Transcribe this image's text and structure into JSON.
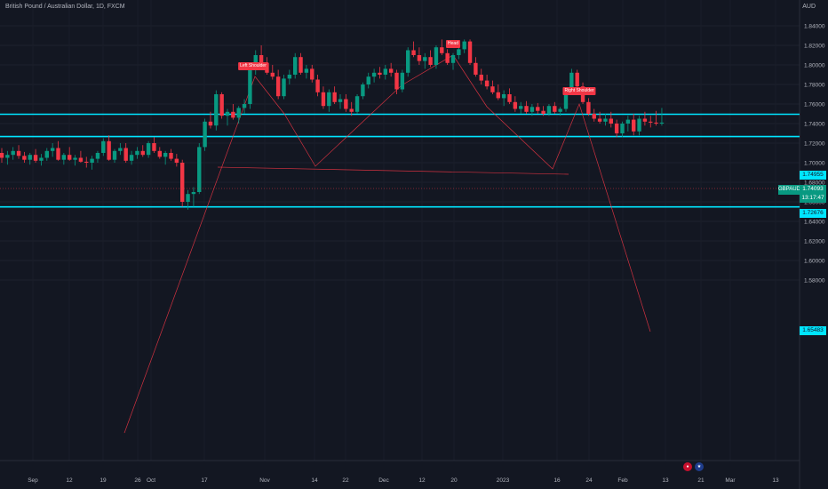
{
  "header": {
    "title": "British Pound / Australian Dollar, 1D, FXCM",
    "currency": "AUD"
  },
  "price_axis": {
    "labels": [
      "1.84000",
      "1.82000",
      "1.80000",
      "1.78000",
      "1.76000",
      "1.74000",
      "1.72000",
      "1.70000",
      "1.68000",
      "1.66000",
      "1.64000",
      "1.62000",
      "1.60000",
      "1.58000"
    ]
  },
  "time_axis": {
    "labels": [
      "Sep",
      "12",
      "19",
      "26",
      "Oct",
      "17",
      "Nov",
      "14",
      "22",
      "Dec",
      "12",
      "20",
      "2023",
      "16",
      "24",
      "Feb",
      "13",
      "21",
      "Mar",
      "13"
    ]
  },
  "levels": [
    {
      "price": 1.74955,
      "label": "1.74955"
    },
    {
      "price": 1.72676,
      "label": "1.72676"
    },
    {
      "price": 1.65483,
      "label": "1.65483"
    }
  ],
  "current": {
    "symbol": "GBPAUD",
    "price": "1.74093",
    "countdown": "13:17:47"
  },
  "pattern_labels": {
    "left_shoulder": "Left Shoulder",
    "head": "Head",
    "right_shoulder": "Right Shoulder"
  },
  "colors": {
    "background": "#131722",
    "up": "#089981",
    "down": "#f23645",
    "level": "#00e5ff",
    "pattern_line": "#f23645"
  },
  "event_icons": [
    "uk-flag-icon",
    "au-flag-icon"
  ],
  "chart_data": {
    "type": "candlestick",
    "symbol": "GBPAUD",
    "timeframe": "1D",
    "ylim": [
      1.575,
      1.845
    ],
    "candles_ohlc": [
      [
        1.71,
        1.715,
        1.7,
        1.705
      ],
      [
        1.705,
        1.712,
        1.698,
        1.708
      ],
      [
        1.708,
        1.716,
        1.703,
        1.712
      ],
      [
        1.712,
        1.718,
        1.704,
        1.707
      ],
      [
        1.707,
        1.711,
        1.7,
        1.703
      ],
      [
        1.703,
        1.71,
        1.698,
        1.708
      ],
      [
        1.708,
        1.714,
        1.7,
        1.702
      ],
      [
        1.702,
        1.709,
        1.697,
        1.705
      ],
      [
        1.705,
        1.715,
        1.702,
        1.712
      ],
      [
        1.712,
        1.72,
        1.706,
        1.715
      ],
      [
        1.715,
        1.722,
        1.702,
        1.703
      ],
      [
        1.703,
        1.71,
        1.698,
        1.708
      ],
      [
        1.708,
        1.716,
        1.702,
        1.703
      ],
      [
        1.703,
        1.708,
        1.697,
        1.705
      ],
      [
        1.705,
        1.712,
        1.7,
        1.701
      ],
      [
        1.701,
        1.706,
        1.695,
        1.7
      ],
      [
        1.7,
        1.707,
        1.693,
        1.704
      ],
      [
        1.704,
        1.712,
        1.7,
        1.71
      ],
      [
        1.71,
        1.725,
        1.707,
        1.722
      ],
      [
        1.722,
        1.728,
        1.702,
        1.703
      ],
      [
        1.703,
        1.714,
        1.7,
        1.712
      ],
      [
        1.712,
        1.72,
        1.708,
        1.715
      ],
      [
        1.715,
        1.72,
        1.7,
        1.702
      ],
      [
        1.702,
        1.712,
        1.698,
        1.708
      ],
      [
        1.708,
        1.716,
        1.704,
        1.712
      ],
      [
        1.712,
        1.718,
        1.706,
        1.708
      ],
      [
        1.708,
        1.722,
        1.705,
        1.72
      ],
      [
        1.72,
        1.726,
        1.71,
        1.712
      ],
      [
        1.712,
        1.716,
        1.704,
        1.706
      ],
      [
        1.706,
        1.712,
        1.698,
        1.71
      ],
      [
        1.71,
        1.714,
        1.702,
        1.704
      ],
      [
        1.704,
        1.709,
        1.696,
        1.7
      ],
      [
        1.7,
        1.703,
        1.655,
        1.66
      ],
      [
        1.66,
        1.672,
        1.652,
        1.668
      ],
      [
        1.668,
        1.675,
        1.655,
        1.67
      ],
      [
        1.67,
        1.72,
        1.668,
        1.716
      ],
      [
        1.716,
        1.745,
        1.712,
        1.742
      ],
      [
        1.742,
        1.752,
        1.735,
        1.738
      ],
      [
        1.738,
        1.774,
        1.733,
        1.77
      ],
      [
        1.77,
        1.772,
        1.745,
        1.748
      ],
      [
        1.748,
        1.755,
        1.738,
        1.752
      ],
      [
        1.752,
        1.76,
        1.744,
        1.746
      ],
      [
        1.746,
        1.758,
        1.74,
        1.756
      ],
      [
        1.756,
        1.765,
        1.75,
        1.76
      ],
      [
        1.76,
        1.798,
        1.755,
        1.795
      ],
      [
        1.795,
        1.815,
        1.79,
        1.81
      ],
      [
        1.81,
        1.82,
        1.8,
        1.802
      ],
      [
        1.802,
        1.808,
        1.79,
        1.792
      ],
      [
        1.792,
        1.8,
        1.785,
        1.788
      ],
      [
        1.788,
        1.795,
        1.765,
        1.768
      ],
      [
        1.768,
        1.79,
        1.765,
        1.786
      ],
      [
        1.786,
        1.795,
        1.78,
        1.79
      ],
      [
        1.79,
        1.812,
        1.786,
        1.808
      ],
      [
        1.808,
        1.812,
        1.79,
        1.792
      ],
      [
        1.792,
        1.8,
        1.786,
        1.796
      ],
      [
        1.796,
        1.8,
        1.782,
        1.785
      ],
      [
        1.785,
        1.79,
        1.768,
        1.772
      ],
      [
        1.772,
        1.778,
        1.755,
        1.758
      ],
      [
        1.758,
        1.775,
        1.752,
        1.772
      ],
      [
        1.772,
        1.778,
        1.76,
        1.762
      ],
      [
        1.762,
        1.77,
        1.755,
        1.765
      ],
      [
        1.765,
        1.77,
        1.752,
        1.755
      ],
      [
        1.755,
        1.762,
        1.748,
        1.752
      ],
      [
        1.752,
        1.77,
        1.75,
        1.768
      ],
      [
        1.768,
        1.782,
        1.765,
        1.78
      ],
      [
        1.78,
        1.792,
        1.776,
        1.788
      ],
      [
        1.788,
        1.796,
        1.782,
        1.792
      ],
      [
        1.792,
        1.798,
        1.786,
        1.79
      ],
      [
        1.79,
        1.8,
        1.785,
        1.796
      ],
      [
        1.796,
        1.802,
        1.788,
        1.792
      ],
      [
        1.792,
        1.795,
        1.77,
        1.775
      ],
      [
        1.775,
        1.795,
        1.772,
        1.792
      ],
      [
        1.792,
        1.818,
        1.788,
        1.815
      ],
      [
        1.815,
        1.824,
        1.808,
        1.81
      ],
      [
        1.81,
        1.818,
        1.8,
        1.804
      ],
      [
        1.804,
        1.812,
        1.796,
        1.808
      ],
      [
        1.808,
        1.815,
        1.798,
        1.8
      ],
      [
        1.8,
        1.82,
        1.796,
        1.818
      ],
      [
        1.818,
        1.826,
        1.81,
        1.812
      ],
      [
        1.812,
        1.816,
        1.8,
        1.802
      ],
      [
        1.802,
        1.812,
        1.795,
        1.81
      ],
      [
        1.81,
        1.82,
        1.806,
        1.816
      ],
      [
        1.816,
        1.826,
        1.812,
        1.824
      ],
      [
        1.824,
        1.826,
        1.8,
        1.802
      ],
      [
        1.802,
        1.808,
        1.788,
        1.79
      ],
      [
        1.79,
        1.796,
        1.78,
        1.784
      ],
      [
        1.784,
        1.79,
        1.775,
        1.778
      ],
      [
        1.778,
        1.784,
        1.77,
        1.772
      ],
      [
        1.772,
        1.78,
        1.764,
        1.766
      ],
      [
        1.766,
        1.774,
        1.758,
        1.77
      ],
      [
        1.77,
        1.776,
        1.76,
        1.762
      ],
      [
        1.762,
        1.768,
        1.752,
        1.755
      ],
      [
        1.755,
        1.762,
        1.75,
        1.758
      ],
      [
        1.758,
        1.763,
        1.75,
        1.752
      ],
      [
        1.752,
        1.76,
        1.748,
        1.757
      ],
      [
        1.757,
        1.761,
        1.75,
        1.753
      ],
      [
        1.753,
        1.758,
        1.748,
        1.75
      ],
      [
        1.75,
        1.76,
        1.748,
        1.758
      ],
      [
        1.758,
        1.762,
        1.75,
        1.752
      ],
      [
        1.752,
        1.757,
        1.748,
        1.755
      ],
      [
        1.755,
        1.775,
        1.752,
        1.772
      ],
      [
        1.772,
        1.796,
        1.77,
        1.792
      ],
      [
        1.792,
        1.795,
        1.775,
        1.778
      ],
      [
        1.778,
        1.782,
        1.76,
        1.762
      ],
      [
        1.762,
        1.766,
        1.748,
        1.75
      ],
      [
        1.75,
        1.755,
        1.742,
        1.745
      ],
      [
        1.745,
        1.752,
        1.74,
        1.742
      ],
      [
        1.742,
        1.75,
        1.738,
        1.745
      ],
      [
        1.745,
        1.752,
        1.736,
        1.74
      ],
      [
        1.74,
        1.744,
        1.726,
        1.73
      ],
      [
        1.73,
        1.742,
        1.726,
        1.74
      ],
      [
        1.74,
        1.748,
        1.732,
        1.744
      ],
      [
        1.744,
        1.75,
        1.728,
        1.732
      ],
      [
        1.732,
        1.748,
        1.728,
        1.745
      ],
      [
        1.745,
        1.752,
        1.738,
        1.742
      ],
      [
        1.742,
        1.748,
        1.736,
        1.741
      ],
      [
        1.741,
        1.753,
        1.738,
        1.74
      ],
      [
        1.74,
        1.756,
        1.738,
        1.741
      ]
    ]
  }
}
